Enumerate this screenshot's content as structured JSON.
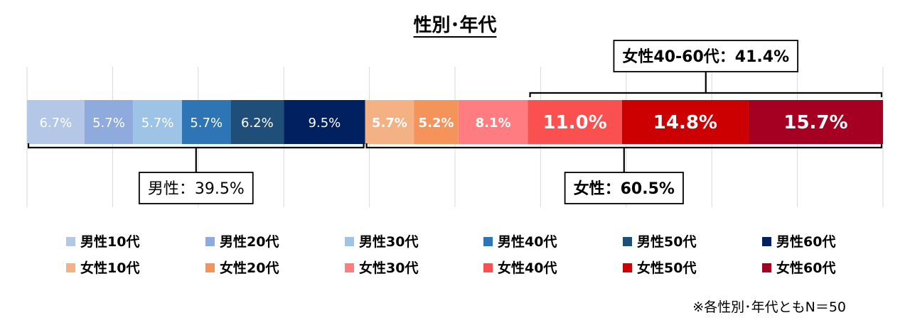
{
  "chart_data": {
    "type": "bar",
    "orientation": "horizontal-stacked-100",
    "title": "性別･年代",
    "categories": [
      "男性10代",
      "男性20代",
      "男性30代",
      "男性40代",
      "男性50代",
      "男性60代",
      "女性10代",
      "女性20代",
      "女性30代",
      "女性40代",
      "女性50代",
      "女性60代"
    ],
    "values": [
      6.7,
      5.7,
      5.7,
      5.7,
      6.2,
      9.5,
      5.7,
      5.2,
      8.1,
      11.0,
      14.8,
      15.7
    ],
    "value_labels": [
      "6.7%",
      "5.7%",
      "5.7%",
      "5.7%",
      "6.2%",
      "9.5%",
      "5.7%",
      "5.2%",
      "8.1%",
      "11.0%",
      "14.8%",
      "15.7%"
    ],
    "colors": [
      "#b4c7e7",
      "#8faadc",
      "#9dc3e6",
      "#2e75b6",
      "#1f4e79",
      "#002060",
      "#f4b183",
      "#f4935a",
      "#ff7c80",
      "#fa5050",
      "#cc0000",
      "#a50021"
    ],
    "label_colors": [
      "#ffffff",
      "#ffffff",
      "#ffffff",
      "#ffffff",
      "#ffffff",
      "#ffffff",
      "#ffffff",
      "#ffffff",
      "#ffffff",
      "#ffffff",
      "#ffffff",
      "#ffffff"
    ],
    "xlim": [
      0,
      100
    ],
    "grid": true,
    "legend_position": "bottom",
    "annotations": [
      {
        "id": "male-total",
        "text": "男性：39.5%",
        "range": [
          0,
          39.5
        ],
        "side": "below",
        "bold": false
      },
      {
        "id": "female-total",
        "text": "女性：60.5%",
        "range": [
          39.5,
          100
        ],
        "side": "below",
        "bold": true
      },
      {
        "id": "female-40-60",
        "text": "女性40-60代：41.4%",
        "range": [
          58.6,
          100
        ],
        "side": "above",
        "bold": true
      }
    ],
    "note": "※各性別･年代ともN＝50"
  }
}
